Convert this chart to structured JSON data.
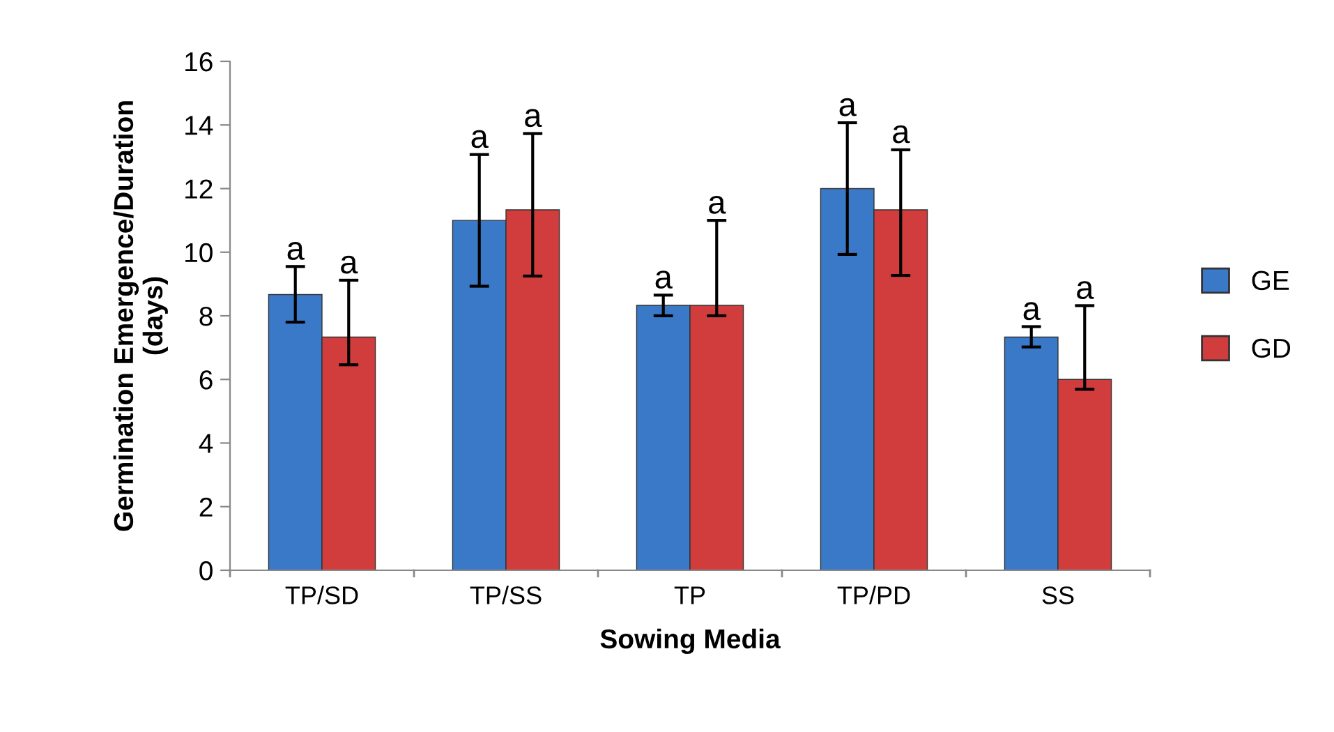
{
  "chart_data": {
    "type": "bar",
    "xlabel": "Sowing Media",
    "ylabel": "Germination Emergence/Duration\n(days)",
    "categories": [
      "TP/SD",
      "TP/SS",
      "TP",
      "TP/PD",
      "SS"
    ],
    "series": [
      {
        "name": "GE",
        "color": "#3a78c8",
        "values": [
          8.67,
          11,
          8.33,
          12,
          7.33
        ],
        "errors": [
          [
            7.8,
            9.55
          ],
          [
            8.93,
            13.07
          ],
          [
            8.0,
            8.65
          ],
          [
            9.93,
            14.07
          ],
          [
            7.02,
            7.66
          ]
        ],
        "value_labels": [
          "a",
          "a",
          "a",
          "a",
          "a"
        ]
      },
      {
        "name": "GD",
        "color": "#d13c3c",
        "values": [
          7.33,
          11.33,
          8.33,
          11.33,
          6
        ],
        "errors": [
          [
            6.46,
            9.12
          ],
          [
            9.25,
            13.73
          ],
          [
            8.0,
            11.0
          ],
          [
            9.27,
            13.22
          ],
          [
            5.69,
            8.32
          ]
        ],
        "value_labels": [
          "a",
          "a",
          "a",
          "a",
          "a"
        ]
      }
    ],
    "ylim": [
      0,
      16
    ],
    "yticks": [
      0,
      2,
      4,
      6,
      8,
      10,
      12,
      14,
      16
    ],
    "grid": false,
    "legend": "right"
  }
}
